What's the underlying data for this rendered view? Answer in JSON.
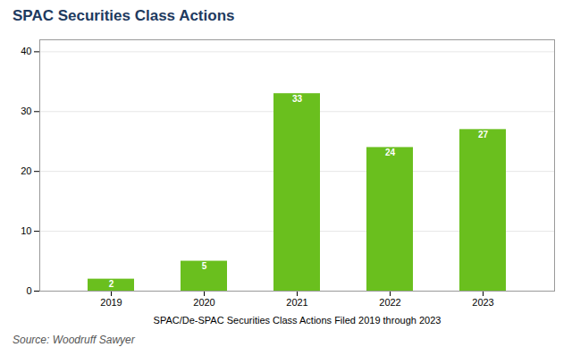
{
  "chart_data": {
    "type": "bar",
    "title": "SPAC Securities Class Actions",
    "xlabel": "SPAC/De-SPAC Securities Class Actions Filed 2019 through 2023",
    "annotations": [
      "Source: Woodruff Sawyer"
    ],
    "categories": [
      "2019",
      "2020",
      "2021",
      "2022",
      "2023"
    ],
    "values": [
      2,
      5,
      33,
      24,
      27
    ],
    "color": "#6abf1e",
    "ylim": [
      0,
      42
    ],
    "yticks": [
      0,
      10,
      20,
      30,
      40
    ],
    "grid": true,
    "data_labels": true
  }
}
